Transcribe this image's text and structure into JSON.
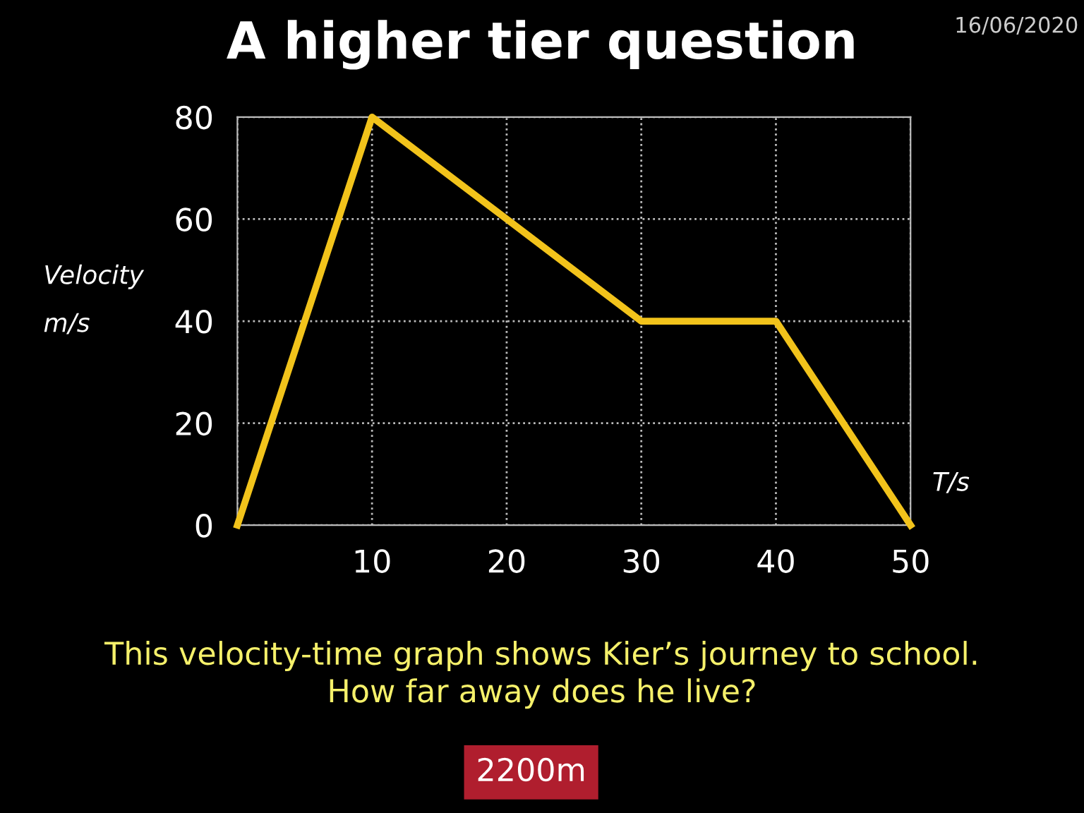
{
  "chart_data": {
    "type": "line",
    "title": "A higher tier question",
    "xlabel": "T/s",
    "ylabel": "Velocity\nm/s",
    "x": [
      0,
      10,
      20,
      30,
      40,
      50
    ],
    "series": [
      {
        "color": "#f2c31b",
        "values": [
          0,
          80,
          60,
          40,
          40,
          0
        ]
      }
    ],
    "xlim": [
      0,
      50
    ],
    "ylim": [
      0,
      80
    ],
    "xticks": [
      {
        "value": 0,
        "label": null
      },
      10,
      20,
      30,
      40,
      50
    ],
    "yticks": [
      0,
      20,
      40,
      60,
      80
    ],
    "grid": true,
    "marker": "none",
    "line_style": "solid",
    "annotations": [
      "16/06/2020",
      "This velocity-time graph shows Kier’s journey to school.\nHow far away does he live?",
      "2200m"
    ]
  }
}
